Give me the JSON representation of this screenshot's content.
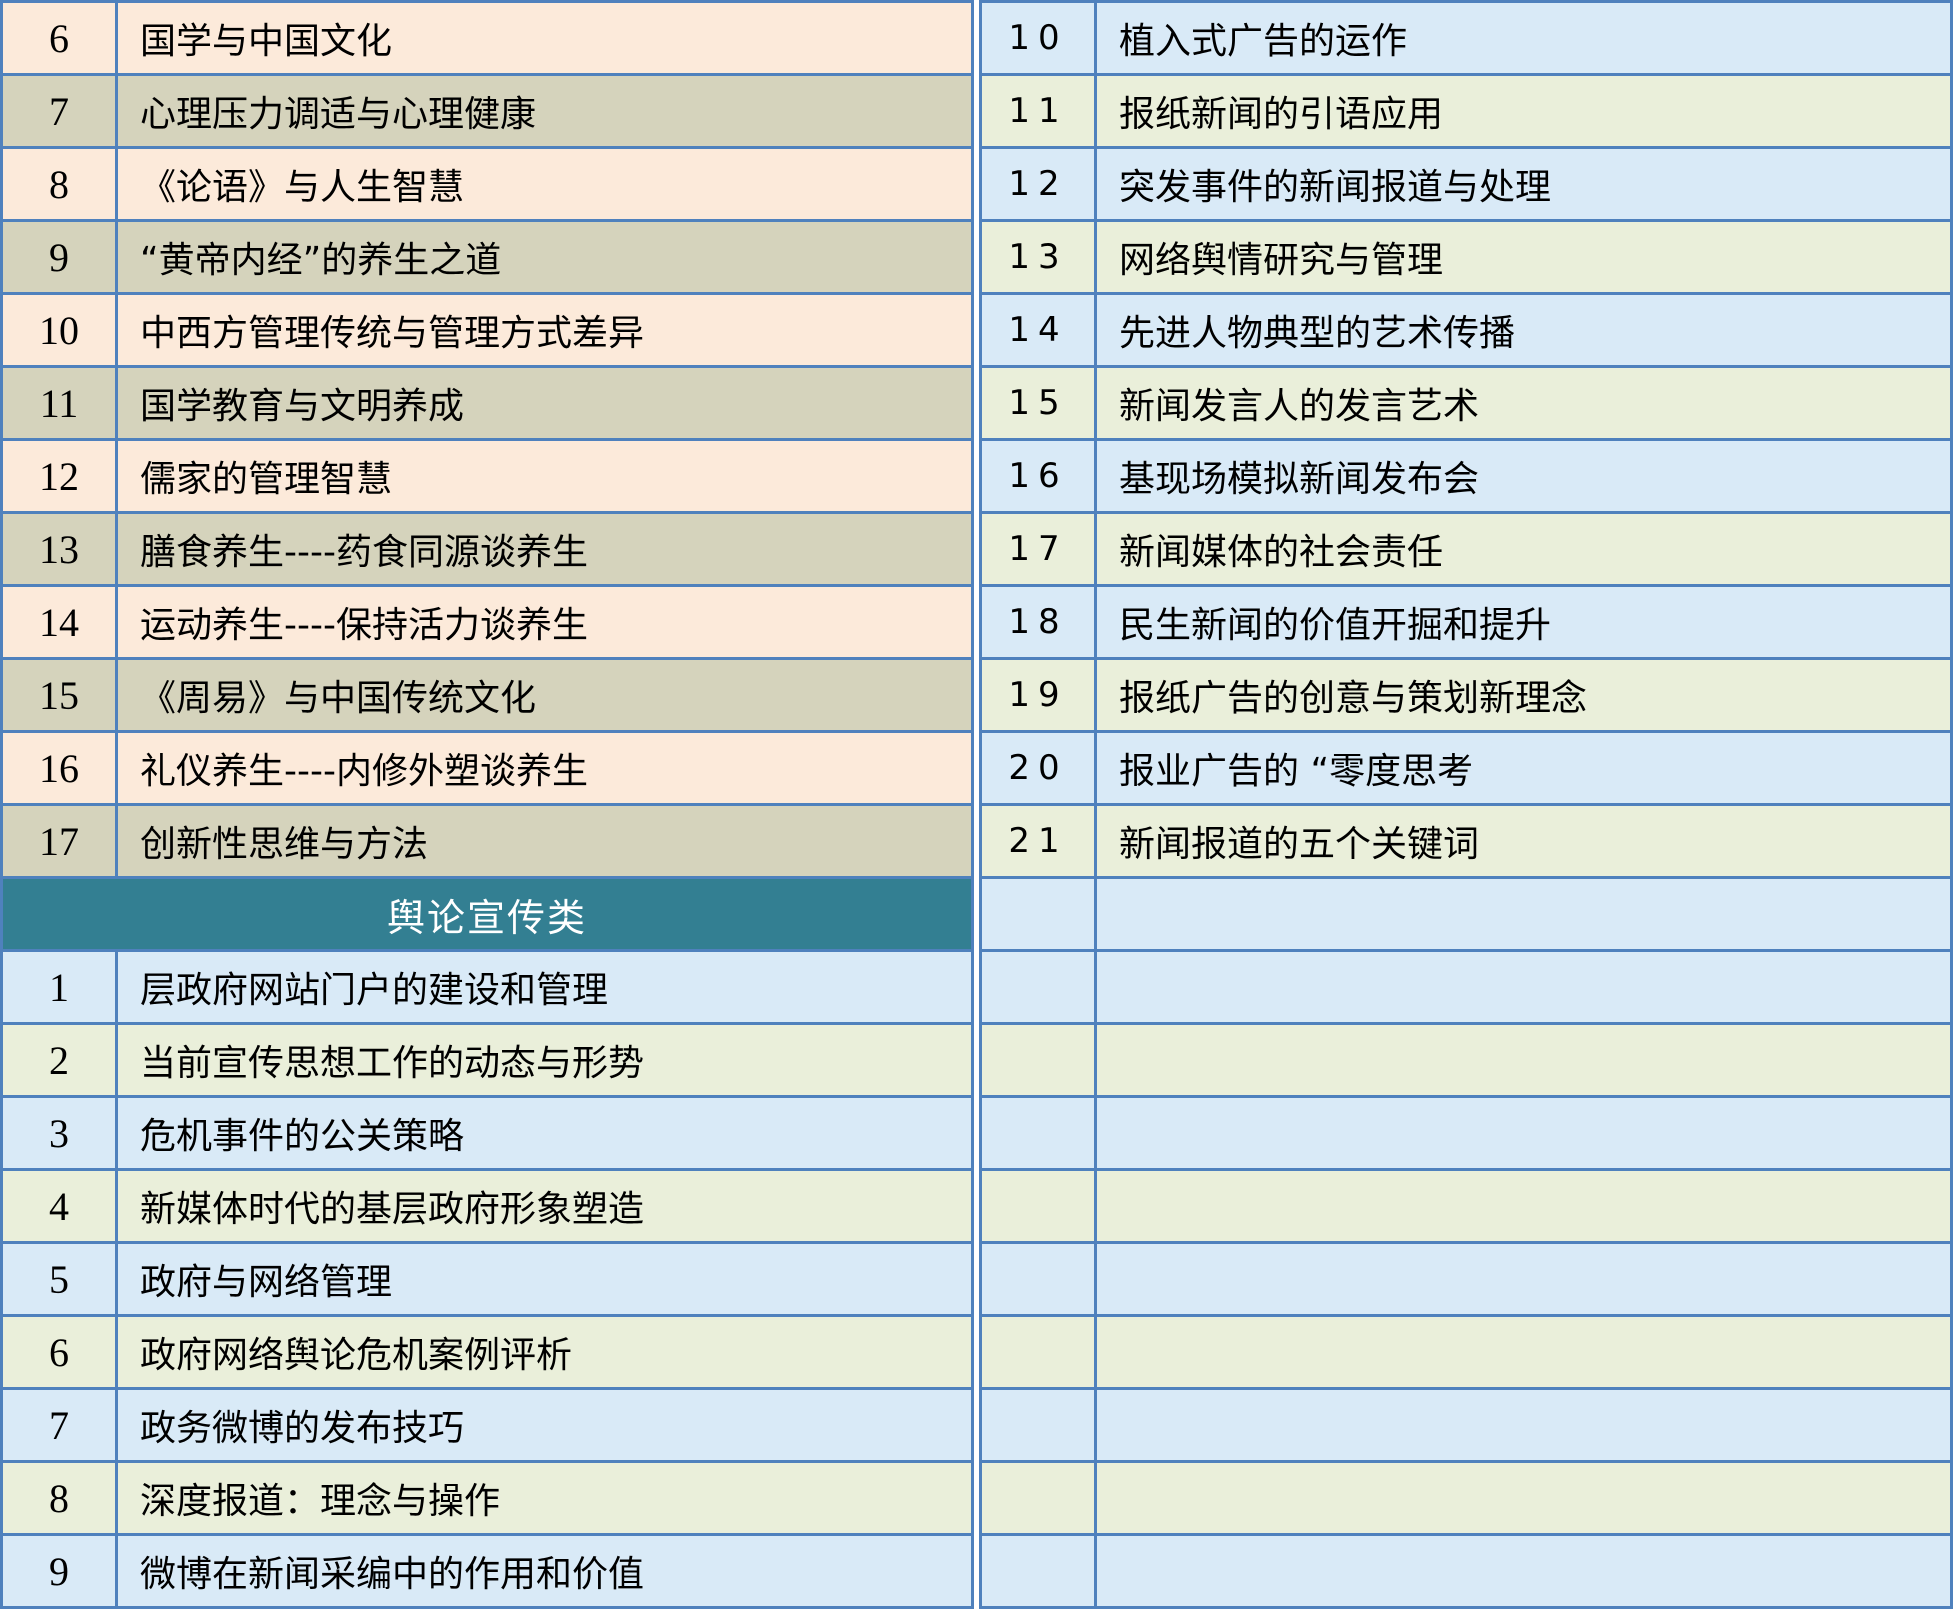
{
  "colors": {
    "border": "#4f81bd",
    "row_peach": "#fceada",
    "row_tan": "#d5d3bc",
    "row_blue": "#d9eaf7",
    "row_green": "#eaefda",
    "section_header_bg": "#337f92",
    "section_header_text": "#ffffff",
    "text": "#000000"
  },
  "left_table": {
    "section1_rows": [
      {
        "num": "6",
        "title": "国学与中国文化"
      },
      {
        "num": "7",
        "title": "心理压力调适与心理健康"
      },
      {
        "num": "8",
        "title": "《论语》与人生智慧"
      },
      {
        "num": "9",
        "title": "“黄帝内经”的养生之道"
      },
      {
        "num": "10",
        "title": "中西方管理传统与管理方式差异"
      },
      {
        "num": "11",
        "title": "国学教育与文明养成"
      },
      {
        "num": "12",
        "title": "儒家的管理智慧"
      },
      {
        "num": "13",
        "title": "膳食养生----药食同源谈养生"
      },
      {
        "num": "14",
        "title": "运动养生----保持活力谈养生"
      },
      {
        "num": "15",
        "title": "《周易》与中国传统文化"
      },
      {
        "num": "16",
        "title": "礼仪养生----内修外塑谈养生"
      },
      {
        "num": "17",
        "title": "创新性思维与方法"
      }
    ],
    "section_header": "舆论宣传类",
    "section2_rows": [
      {
        "num": "1",
        "title": "层政府网站门户的建设和管理"
      },
      {
        "num": "2",
        "title": "当前宣传思想工作的动态与形势"
      },
      {
        "num": "3",
        "title": "危机事件的公关策略"
      },
      {
        "num": "4",
        "title": "新媒体时代的基层政府形象塑造"
      },
      {
        "num": "5",
        "title": "政府与网络管理"
      },
      {
        "num": "6",
        "title": "政府网络舆论危机案例评析"
      },
      {
        "num": "7",
        "title": "政务微博的发布技巧"
      },
      {
        "num": "8",
        "title": "深度报道：理念与操作"
      },
      {
        "num": "9",
        "title": "微博在新闻采编中的作用和价值"
      }
    ]
  },
  "right_table": {
    "rows": [
      {
        "num": "10",
        "title": "植入式广告的运作"
      },
      {
        "num": "11",
        "title": "报纸新闻的引语应用"
      },
      {
        "num": "12",
        "title": "突发事件的新闻报道与处理"
      },
      {
        "num": "13",
        "title": "网络舆情研究与管理"
      },
      {
        "num": "14",
        "title": "先进人物典型的艺术传播"
      },
      {
        "num": "15",
        "title": "新闻发言人的发言艺术"
      },
      {
        "num": "16",
        "title": "基现场模拟新闻发布会"
      },
      {
        "num": "17",
        "title": "新闻媒体的社会责任"
      },
      {
        "num": "18",
        "title": "民生新闻的价值开掘和提升"
      },
      {
        "num": "19",
        "title": "报纸广告的创意与策划新理念"
      },
      {
        "num": "20",
        "title": "报业广告的 “零度思考"
      },
      {
        "num": "21",
        "title": "新闻报道的五个关键词"
      }
    ],
    "empty_row_count": 10
  }
}
